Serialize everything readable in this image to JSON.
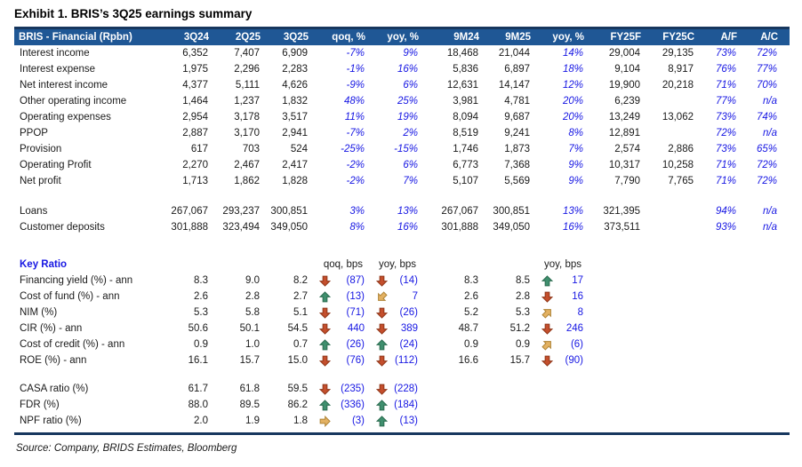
{
  "title": "Exhibit 1. BRIS’s 3Q25 earnings summary",
  "source": "Source: Company, BRIDS Estimates, Bloomberg",
  "colors": {
    "header_bg": "#1F5795",
    "header_border": "#17375E",
    "blue_text": "#1717E3",
    "arrow_red_fill": "#C44F2D",
    "arrow_red_stroke": "#8F3517",
    "arrow_green_fill": "#3F8F6E",
    "arrow_green_stroke": "#2A6B4F",
    "arrow_yellow_fill": "#E3B162",
    "arrow_yellow_stroke": "#AE8334"
  },
  "table": {
    "header": [
      "BRIS - Financial (Rpbn)",
      "3Q24",
      "2Q25",
      "3Q25",
      "qoq, %",
      "yoy, %",
      "9M24",
      "9M25",
      "yoy, %",
      "FY25F",
      "FY25C",
      "A/F",
      "A/C"
    ],
    "financial_rows": [
      {
        "label": "Interest income",
        "cells": [
          "6,352",
          "7,407",
          "6,909",
          "-7%",
          "9%",
          "18,468",
          "21,044",
          "14%",
          "29,004",
          "29,135",
          "73%",
          "72%"
        ]
      },
      {
        "label": "Interest expense",
        "cells": [
          "1,975",
          "2,296",
          "2,283",
          "-1%",
          "16%",
          "5,836",
          "6,897",
          "18%",
          "9,104",
          "8,917",
          "76%",
          "77%"
        ]
      },
      {
        "label": "Net interest income",
        "cells": [
          "4,377",
          "5,111",
          "4,626",
          "-9%",
          "6%",
          "12,631",
          "14,147",
          "12%",
          "19,900",
          "20,218",
          "71%",
          "70%"
        ]
      },
      {
        "label": "Other operating income",
        "cells": [
          "1,464",
          "1,237",
          "1,832",
          "48%",
          "25%",
          "3,981",
          "4,781",
          "20%",
          "6,239",
          "",
          "77%",
          "n/a"
        ]
      },
      {
        "label": "Operating expenses",
        "cells": [
          "2,954",
          "3,178",
          "3,517",
          "11%",
          "19%",
          "8,094",
          "9,687",
          "20%",
          "13,249",
          "13,062",
          "73%",
          "74%"
        ]
      },
      {
        "label": "PPOP",
        "cells": [
          "2,887",
          "3,170",
          "2,941",
          "-7%",
          "2%",
          "8,519",
          "9,241",
          "8%",
          "12,891",
          "",
          "72%",
          "n/a"
        ]
      },
      {
        "label": "Provision",
        "cells": [
          "617",
          "703",
          "524",
          "-25%",
          "-15%",
          "1,746",
          "1,873",
          "7%",
          "2,574",
          "2,886",
          "73%",
          "65%"
        ]
      },
      {
        "label": "Operating Profit",
        "cells": [
          "2,270",
          "2,467",
          "2,417",
          "-2%",
          "6%",
          "6,773",
          "7,368",
          "9%",
          "10,317",
          "10,258",
          "71%",
          "72%"
        ]
      },
      {
        "label": "Net profit",
        "cells": [
          "1,713",
          "1,862",
          "1,828",
          "-2%",
          "7%",
          "5,107",
          "5,569",
          "9%",
          "7,790",
          "7,765",
          "71%",
          "72%"
        ]
      }
    ],
    "balance_rows": [
      {
        "label": "Loans",
        "cells": [
          "267,067",
          "293,237",
          "300,851",
          "3%",
          "13%",
          "267,067",
          "300,851",
          "13%",
          "321,395",
          "",
          "94%",
          "n/a"
        ]
      },
      {
        "label": "Customer deposits",
        "cells": [
          "301,888",
          "323,494",
          "349,050",
          "8%",
          "16%",
          "301,888",
          "349,050",
          "16%",
          "373,511",
          "",
          "93%",
          "n/a"
        ]
      }
    ],
    "key_ratio_label": "Key Ratio",
    "key_ratio_subheaders": {
      "qoq": "qoq, bps",
      "yoy": "yoy, bps",
      "yoy9m": "yoy, bps"
    },
    "ratio_rows": [
      {
        "label": "Financing yield (%) - ann",
        "q1": "8.3",
        "q2": "9.0",
        "q3": "8.2",
        "qoq_icon": "down-red",
        "qoq": "(87)",
        "yoy_icon": "down-red",
        "yoy": "(14)",
        "m1": "8.3",
        "m2": "8.5",
        "yoy9m_icon": "up-green",
        "yoy9m": "17"
      },
      {
        "label": "Cost of fund (%) - ann",
        "q1": "2.6",
        "q2": "2.8",
        "q3": "2.7",
        "qoq_icon": "up-green",
        "qoq": "(13)",
        "yoy_icon": "sw-yellow",
        "yoy": "7",
        "m1": "2.6",
        "m2": "2.8",
        "yoy9m_icon": "down-red",
        "yoy9m": "16"
      },
      {
        "label": "NIM (%)",
        "q1": "5.3",
        "q2": "5.8",
        "q3": "5.1",
        "qoq_icon": "down-red",
        "qoq": "(71)",
        "yoy_icon": "down-red",
        "yoy": "(26)",
        "m1": "5.2",
        "m2": "5.3",
        "yoy9m_icon": "ne-yellow",
        "yoy9m": "8"
      },
      {
        "label": "CIR (%) - ann",
        "q1": "50.6",
        "q2": "50.1",
        "q3": "54.5",
        "qoq_icon": "down-red",
        "qoq": "440",
        "yoy_icon": "down-red",
        "yoy": "389",
        "m1": "48.7",
        "m2": "51.2",
        "yoy9m_icon": "down-red",
        "yoy9m": "246"
      },
      {
        "label": "Cost of credit (%) - ann",
        "q1": "0.9",
        "q2": "1.0",
        "q3": "0.7",
        "qoq_icon": "up-green",
        "qoq": "(26)",
        "yoy_icon": "up-green",
        "yoy": "(24)",
        "m1": "0.9",
        "m2": "0.9",
        "yoy9m_icon": "ne-yellow",
        "yoy9m": "(6)"
      },
      {
        "label": "ROE (%) - ann",
        "q1": "16.1",
        "q2": "15.7",
        "q3": "15.0",
        "qoq_icon": "down-red",
        "qoq": "(76)",
        "yoy_icon": "down-red",
        "yoy": "(112)",
        "m1": "16.6",
        "m2": "15.7",
        "yoy9m_icon": "down-red",
        "yoy9m": "(90)"
      }
    ],
    "liquidity_rows": [
      {
        "label": "CASA ratio (%)",
        "q1": "61.7",
        "q2": "61.8",
        "q3": "59.5",
        "qoq_icon": "down-red",
        "qoq": "(235)",
        "yoy_icon": "down-red",
        "yoy": "(228)"
      },
      {
        "label": "FDR (%)",
        "q1": "88.0",
        "q2": "89.5",
        "q3": "86.2",
        "qoq_icon": "up-green",
        "qoq": "(336)",
        "yoy_icon": "up-green",
        "yoy": "(184)"
      },
      {
        "label": "NPF ratio (%)",
        "q1": "2.0",
        "q2": "1.9",
        "q3": "1.8",
        "qoq_icon": "right-yellow",
        "qoq": "(3)",
        "yoy_icon": "up-green",
        "yoy": "(13)"
      }
    ]
  }
}
